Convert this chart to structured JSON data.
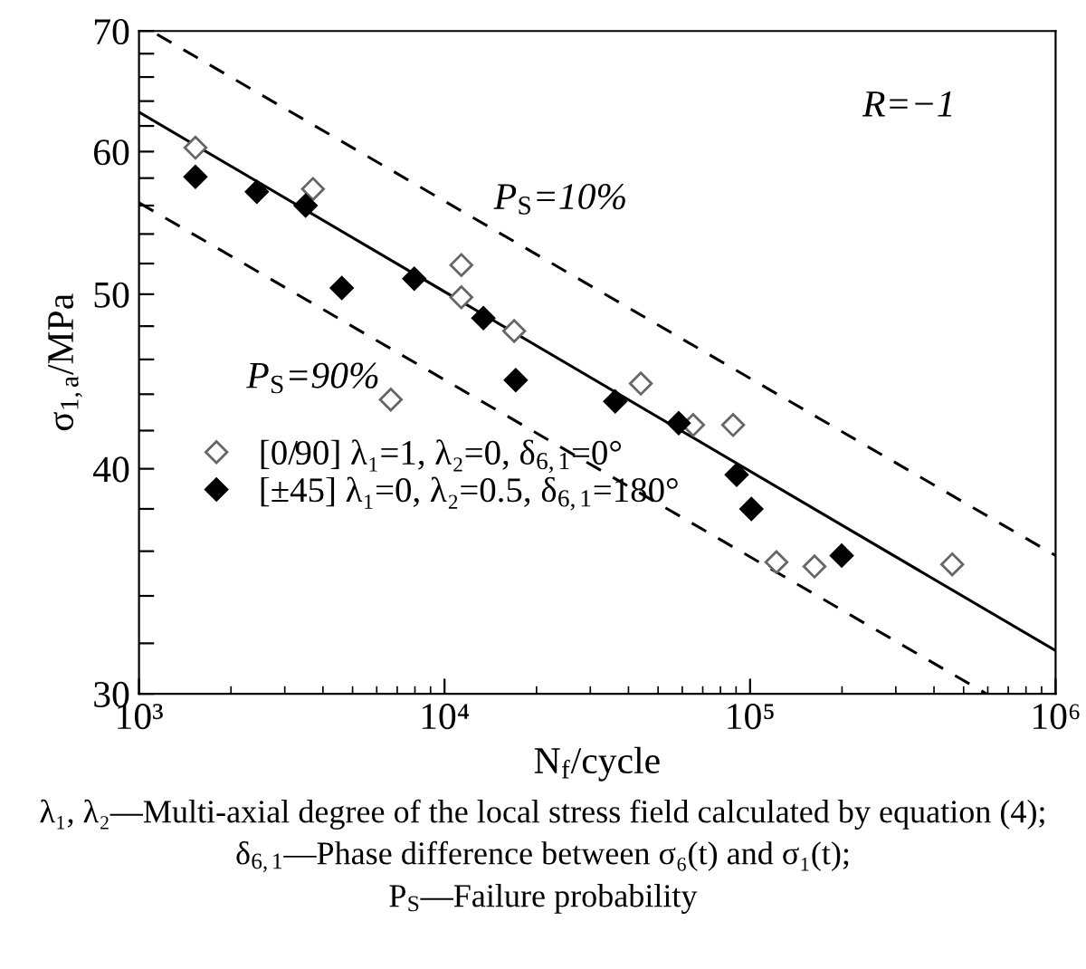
{
  "chart_data": {
    "type": "scatter",
    "xlabel": "N$_{f}$/cycle",
    "ylabel": "σ$_{1,a}$/MPa",
    "log": "xy",
    "xlim": [
      1000,
      1000000
    ],
    "xticks": [
      {
        "value": 1000,
        "label": "10³"
      },
      {
        "value": 10000,
        "label": "10⁴"
      },
      {
        "value": 100000,
        "label": "10⁵"
      },
      {
        "value": 1000000,
        "label": "10⁶"
      }
    ],
    "ylim": [
      30,
      70
    ],
    "yticks": [
      30,
      {
        "value": 32,
        "label": null
      },
      {
        "value": 34,
        "label": null
      },
      {
        "value": 36,
        "label": null
      },
      {
        "value": 38,
        "label": null
      },
      40,
      {
        "value": 42,
        "label": null
      },
      {
        "value": 44,
        "label": null
      },
      {
        "value": 46,
        "label": null
      },
      {
        "value": 48,
        "label": null
      },
      50,
      {
        "value": 52,
        "label": null
      },
      {
        "value": 54,
        "label": null
      },
      {
        "value": 56,
        "label": null
      },
      {
        "value": 58,
        "label": null
      },
      60,
      {
        "value": 62,
        "label": null
      },
      {
        "value": 64,
        "label": null
      },
      {
        "value": 66,
        "label": null
      },
      {
        "value": 68,
        "label": null
      },
      70
    ],
    "grid": false,
    "legend": "left",
    "marker": "diamond",
    "series": [
      {
        "name": "[0/90] λ₁=1, λ₂=0, δ$_{6,1}$=0°",
        "color": "#666666",
        "x": [
          1530,
          3710,
          6670,
          11350,
          11350,
          16900,
          43900,
          65100,
          88000,
          122000,
          162500,
          459000
        ],
        "values": [
          60.3,
          57.2,
          43.7,
          51.9,
          49.8,
          47.7,
          44.6,
          42.3,
          42.3,
          35.5,
          35.3,
          35.4
        ]
      },
      {
        "name": "[±45] λ₁=0, λ₂=0.5, δ$_{6,1}$=180°",
        "color": "#000000",
        "x": [
          1530,
          2430,
          3510,
          4610,
          7960,
          13400,
          17100,
          36200,
          58400,
          90400,
          101000,
          199500
        ],
        "values": [
          58.1,
          57.0,
          56.0,
          50.4,
          51.0,
          48.5,
          44.8,
          43.6,
          42.4,
          39.7,
          38.0,
          35.8
        ]
      },
      {
        "type": "line",
        "color": "#000000",
        "line_style": "solid",
        "marker": "none",
        "x": [
          1000,
          1000000
        ],
        "values": [
          63.1,
          31.7
        ]
      },
      {
        "type": "line",
        "color": "#000000",
        "line_style": "dashed",
        "marker": "none",
        "x": [
          1146,
          1000000
        ],
        "values": [
          69.7,
          35.8
        ]
      },
      {
        "type": "line",
        "color": "#000000",
        "line_style": "dashed",
        "marker": "none",
        "x": [
          1000,
          594000
        ],
        "values": [
          56.2,
          30
        ]
      }
    ],
    "annotations": [
      "R=−1",
      "P$_{S}$=10%",
      "P$_{S}$=90%",
      "λ₁, λ₂—Multi-axial degree of the local stress field calculated by equation (4); δ$_{6,1}$—Phase difference between σ₆(t) and σ₁(t);\nP$_{S}$—Failure probability"
    ]
  }
}
